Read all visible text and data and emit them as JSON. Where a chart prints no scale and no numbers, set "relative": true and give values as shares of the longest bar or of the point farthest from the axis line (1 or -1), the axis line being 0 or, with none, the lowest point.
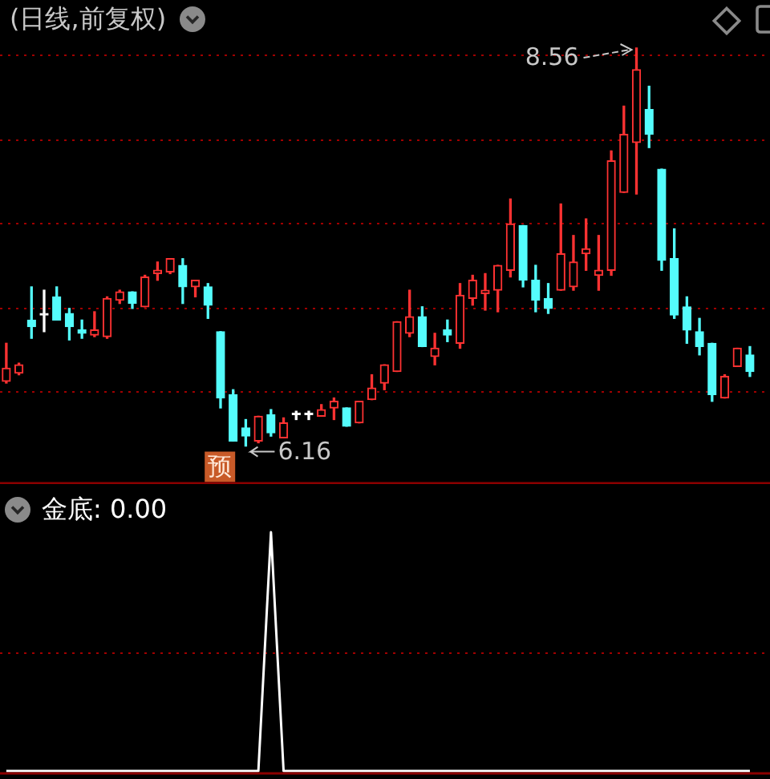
{
  "chart_data": [
    {
      "type": "candlestick",
      "title": "(日线,前复权)",
      "categories": [
        null,
        null,
        null,
        null,
        null,
        null,
        null,
        null,
        null,
        null,
        null,
        null,
        null,
        null,
        null,
        null,
        null,
        null,
        null,
        null,
        null,
        null,
        null,
        null,
        null,
        null,
        null,
        null,
        null,
        null,
        null,
        null,
        null,
        null,
        null,
        null,
        null,
        null,
        null,
        null,
        null,
        null,
        null,
        null,
        null,
        null,
        null,
        null,
        null,
        null,
        null,
        null,
        null,
        null,
        null,
        null,
        null,
        null,
        null,
        null
      ],
      "ohlc": [
        [
          6.55,
          6.78,
          6.54,
          6.63
        ],
        [
          6.6,
          6.66,
          6.59,
          6.65
        ],
        [
          6.92,
          7.12,
          6.81,
          6.88
        ],
        [
          6.95,
          7.1,
          6.85,
          6.95
        ],
        [
          7.06,
          7.12,
          6.92,
          6.92
        ],
        [
          6.96,
          6.99,
          6.8,
          6.88
        ],
        [
          6.86,
          6.92,
          6.81,
          6.84
        ],
        [
          6.83,
          6.97,
          6.82,
          6.86
        ],
        [
          6.82,
          7.06,
          6.81,
          7.05
        ],
        [
          7.04,
          7.1,
          7.02,
          7.09
        ],
        [
          7.09,
          7.09,
          6.99,
          7.02
        ],
        [
          7.0,
          7.19,
          7.0,
          7.18
        ],
        [
          7.2,
          7.27,
          7.16,
          7.22
        ],
        [
          7.21,
          7.29,
          7.2,
          7.29
        ],
        [
          7.25,
          7.29,
          7.02,
          7.12
        ],
        [
          7.12,
          7.16,
          7.06,
          7.16
        ],
        [
          7.12,
          7.14,
          6.93,
          7.01
        ],
        [
          6.85,
          6.85,
          6.39,
          6.45
        ],
        [
          6.47,
          6.5,
          6.19,
          6.19
        ],
        [
          6.27,
          6.32,
          6.16,
          6.22
        ],
        [
          6.19,
          6.34,
          6.18,
          6.34
        ],
        [
          6.35,
          6.38,
          6.22,
          6.24
        ],
        [
          6.21,
          6.33,
          6.21,
          6.3
        ],
        [
          6.35,
          6.37,
          6.32,
          6.35
        ],
        [
          6.35,
          6.37,
          6.32,
          6.35
        ],
        [
          6.34,
          6.41,
          6.34,
          6.38
        ],
        [
          6.39,
          6.45,
          6.32,
          6.43
        ],
        [
          6.39,
          6.39,
          6.28,
          6.28
        ],
        [
          6.3,
          6.43,
          6.3,
          6.43
        ],
        [
          6.44,
          6.59,
          6.44,
          6.51
        ],
        [
          6.54,
          6.65,
          6.5,
          6.65
        ],
        [
          6.61,
          6.91,
          6.61,
          6.91
        ],
        [
          6.84,
          7.1,
          6.82,
          6.94
        ],
        [
          6.94,
          7.0,
          6.76,
          6.76
        ],
        [
          6.7,
          6.84,
          6.65,
          6.75
        ],
        [
          6.86,
          6.92,
          6.79,
          6.83
        ],
        [
          6.78,
          7.14,
          6.75,
          7.07
        ],
        [
          7.05,
          7.19,
          7.01,
          7.16
        ],
        [
          7.08,
          7.2,
          6.98,
          7.1
        ],
        [
          7.1,
          7.25,
          6.97,
          7.25
        ],
        [
          7.22,
          7.65,
          7.18,
          7.5
        ],
        [
          7.49,
          7.49,
          7.12,
          7.16
        ],
        [
          7.16,
          7.25,
          6.97,
          7.04
        ],
        [
          7.05,
          7.14,
          6.96,
          6.99
        ],
        [
          7.1,
          7.62,
          7.1,
          7.32
        ],
        [
          7.12,
          7.43,
          7.1,
          7.27
        ],
        [
          7.32,
          7.53,
          7.22,
          7.35
        ],
        [
          7.19,
          7.43,
          7.1,
          7.22
        ],
        [
          7.22,
          7.94,
          7.19,
          7.88
        ],
        [
          7.69,
          8.21,
          7.69,
          8.04
        ],
        [
          7.99,
          8.56,
          7.68,
          8.43
        ],
        [
          8.19,
          8.33,
          7.96,
          8.04
        ],
        [
          7.83,
          7.83,
          7.22,
          7.28
        ],
        [
          7.29,
          7.47,
          6.93,
          6.95
        ],
        [
          7.0,
          7.06,
          6.78,
          6.86
        ],
        [
          6.85,
          6.93,
          6.71,
          6.76
        ],
        [
          6.78,
          6.78,
          6.43,
          6.47
        ],
        [
          6.45,
          6.59,
          6.45,
          6.58
        ],
        [
          6.64,
          6.75,
          6.64,
          6.75
        ],
        [
          6.71,
          6.76,
          6.58,
          6.61
        ]
      ],
      "colors": [
        "#ff3232",
        "#ff3232",
        "#54fcfc",
        "#ffffff",
        "#54fcfc",
        "#54fcfc",
        "#54fcfc",
        "#ff3232",
        "#ff3232",
        "#ff3232",
        "#54fcfc",
        "#ff3232",
        "#ff3232",
        "#ff3232",
        "#54fcfc",
        "#ff3232",
        "#54fcfc",
        "#54fcfc",
        "#54fcfc",
        "#54fcfc",
        "#ff3232",
        "#54fcfc",
        "#ff3232",
        "#ffffff",
        "#ffffff",
        "#ff3232",
        "#ff3232",
        "#54fcfc",
        "#ff3232",
        "#ff3232",
        "#ff3232",
        "#ff3232",
        "#ff3232",
        "#54fcfc",
        "#ff3232",
        "#54fcfc",
        "#ff3232",
        "#ff3232",
        "#ff3232",
        "#ff3232",
        "#ff3232",
        "#54fcfc",
        "#54fcfc",
        "#54fcfc",
        "#ff3232",
        "#ff3232",
        "#ff3232",
        "#ff3232",
        "#ff3232",
        "#ff3232",
        "#ff3232",
        "#54fcfc",
        "#54fcfc",
        "#54fcfc",
        "#54fcfc",
        "#54fcfc",
        "#54fcfc",
        "#ff3232",
        "#ff3232",
        "#54fcfc"
      ],
      "ref_lines": [
        {
          "axis": "y",
          "value": 8.52,
          "color": "#a00000",
          "line_style": "dotted"
        },
        {
          "axis": "y",
          "value": 8.01,
          "color": "#a00000",
          "line_style": "dotted"
        },
        {
          "axis": "y",
          "value": 7.51,
          "color": "#a00000",
          "line_style": "dotted"
        },
        {
          "axis": "y",
          "value": 6.99,
          "color": "#a00000",
          "line_style": "dotted"
        },
        {
          "axis": "y",
          "value": 6.49,
          "color": "#a00000",
          "line_style": "dotted"
        }
      ],
      "tick_labels": false,
      "annotations": [
        "8.56",
        "6.16",
        "预"
      ]
    },
    {
      "type": "line",
      "categories": [
        null,
        null,
        null,
        null,
        null,
        null,
        null,
        null,
        null,
        null,
        null,
        null,
        null,
        null,
        null,
        null,
        null,
        null,
        null,
        null,
        null,
        null,
        null,
        null,
        null,
        null,
        null,
        null,
        null,
        null,
        null,
        null,
        null,
        null,
        null,
        null,
        null,
        null,
        null,
        null,
        null,
        null,
        null,
        null,
        null,
        null,
        null,
        null,
        null,
        null,
        null,
        null,
        null,
        null,
        null,
        null,
        null,
        null,
        null,
        null
      ],
      "series": [
        {
          "name": "金底: 0.00",
          "color": "#ffffff",
          "values": [
            0,
            0,
            0,
            0,
            0,
            0,
            0,
            0,
            0,
            0,
            0,
            0,
            0,
            0,
            0,
            0,
            0,
            0,
            0,
            0,
            0,
            1,
            0,
            0,
            0,
            0,
            0,
            0,
            0,
            0,
            0,
            0,
            0,
            0,
            0,
            0,
            0,
            0,
            0,
            0,
            0,
            0,
            0,
            0,
            0,
            0,
            0,
            0,
            0,
            0,
            0,
            0,
            0,
            0,
            0,
            0,
            0,
            0,
            0,
            0
          ]
        }
      ],
      "ref_lines": [
        {
          "axis": "y",
          "value": 0.5,
          "color": "#a00000",
          "line_style": "dotted"
        }
      ],
      "relative": true,
      "legend": "top left",
      "tick_labels": false
    }
  ]
}
